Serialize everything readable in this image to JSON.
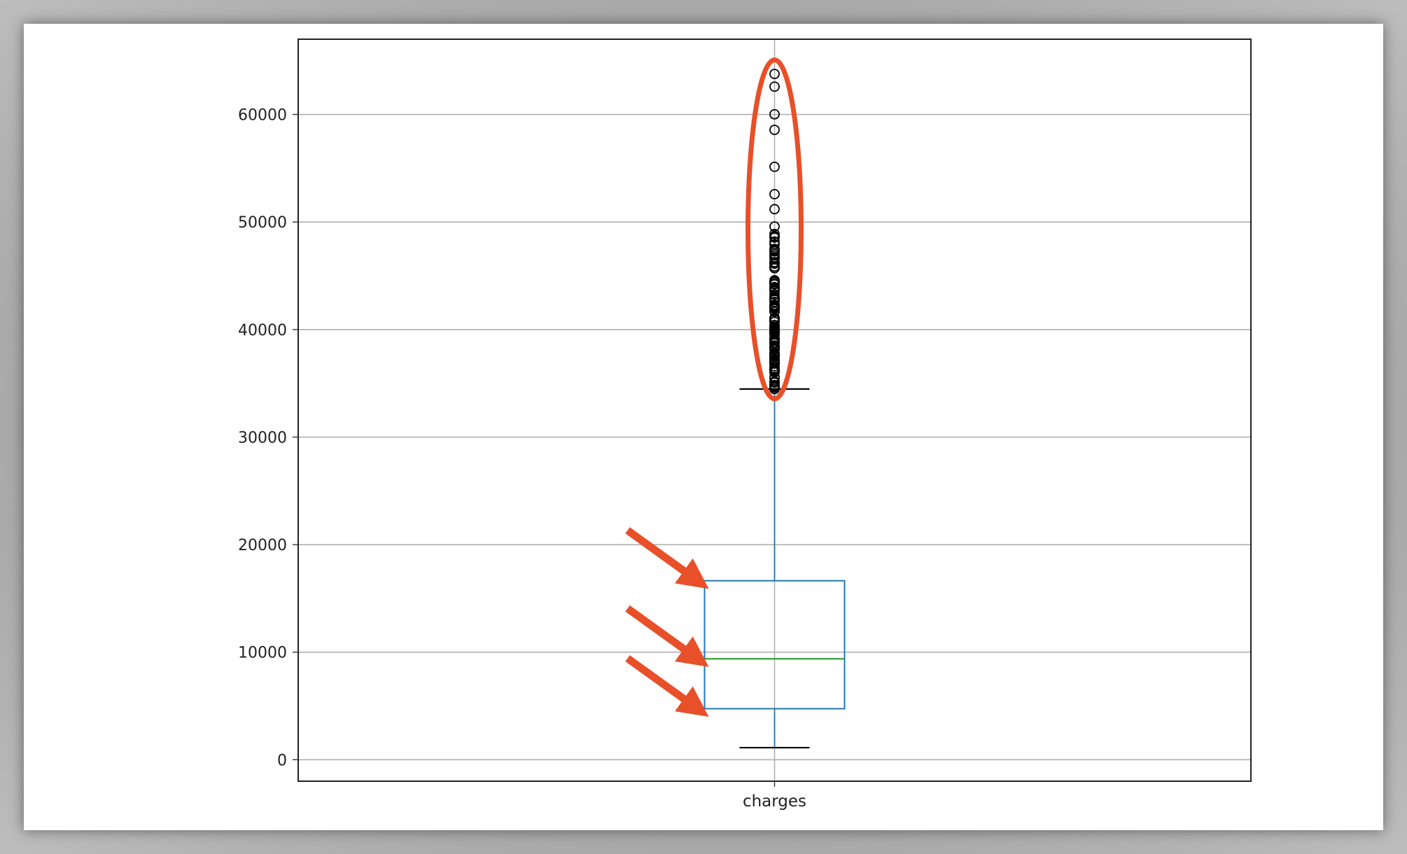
{
  "chart_data": {
    "type": "box",
    "title": "",
    "xlabel": "",
    "ylabel": "",
    "grid": true,
    "categories": [
      "charges"
    ],
    "ylim": [
      -2000,
      67000
    ],
    "yticks": [
      0,
      10000,
      20000,
      30000,
      40000,
      50000,
      60000
    ],
    "ytick_labels": [
      "0",
      "10000",
      "20000",
      "30000",
      "40000",
      "50000",
      "60000"
    ],
    "box": {
      "whisker_low": 1120,
      "q1": 4740,
      "median": 9380,
      "q3": 16640,
      "whisker_high": 34470
    },
    "outliers": [
      63770,
      62590,
      60021,
      58571,
      55135,
      52590,
      51195,
      49577,
      48885,
      48673,
      48549,
      48173,
      47928,
      47496,
      47403,
      47305,
      47269,
      47055,
      46889,
      46719,
      46599,
      46255,
      46200,
      46151,
      46130,
      45863,
      45710,
      45702,
      44585,
      44501,
      44423,
      44400,
      44260,
      44202,
      43943,
      43921,
      43896,
      43813,
      43753,
      43578,
      43254,
      42983,
      42969,
      42856,
      42760,
      42560,
      42303,
      42212,
      42124,
      42112,
      41999,
      41949,
      41919,
      41676,
      41661,
      41097,
      41034,
      40974,
      40941,
      40932,
      40904,
      40720,
      40419,
      40273,
      40182,
      40103,
      40003,
      39983,
      39871,
      39837,
      39774,
      39727,
      39611,
      39597,
      39556,
      39241,
      39125,
      39047,
      38998,
      38792,
      38746,
      38711,
      38511,
      38415,
      38344,
      38282,
      38245,
      38126,
      37829,
      37742,
      37701,
      37607,
      37484,
      37465,
      37270,
      37165,
      37133,
      37079,
      36950,
      36910,
      36898,
      36837,
      36580,
      36398,
      36307,
      36219,
      36197,
      36149,
      36124,
      36086,
      36021,
      35585,
      35491,
      35160,
      35147,
      35069,
      34839,
      34806,
      34779,
      34672,
      34617,
      34472
    ],
    "annotations": [
      {
        "type": "ellipse",
        "target": "outliers",
        "color": "#e8502a"
      },
      {
        "type": "arrow",
        "target": "q3",
        "color": "#e8502a"
      },
      {
        "type": "arrow",
        "target": "median",
        "color": "#e8502a"
      },
      {
        "type": "arrow",
        "target": "q1",
        "color": "#e8502a"
      }
    ],
    "colors": {
      "box": "#1f77b4",
      "median": "#2ca02c",
      "whisker_cap": "#000000",
      "grid": "#b0b0b0",
      "annotation": "#e8502a"
    }
  }
}
